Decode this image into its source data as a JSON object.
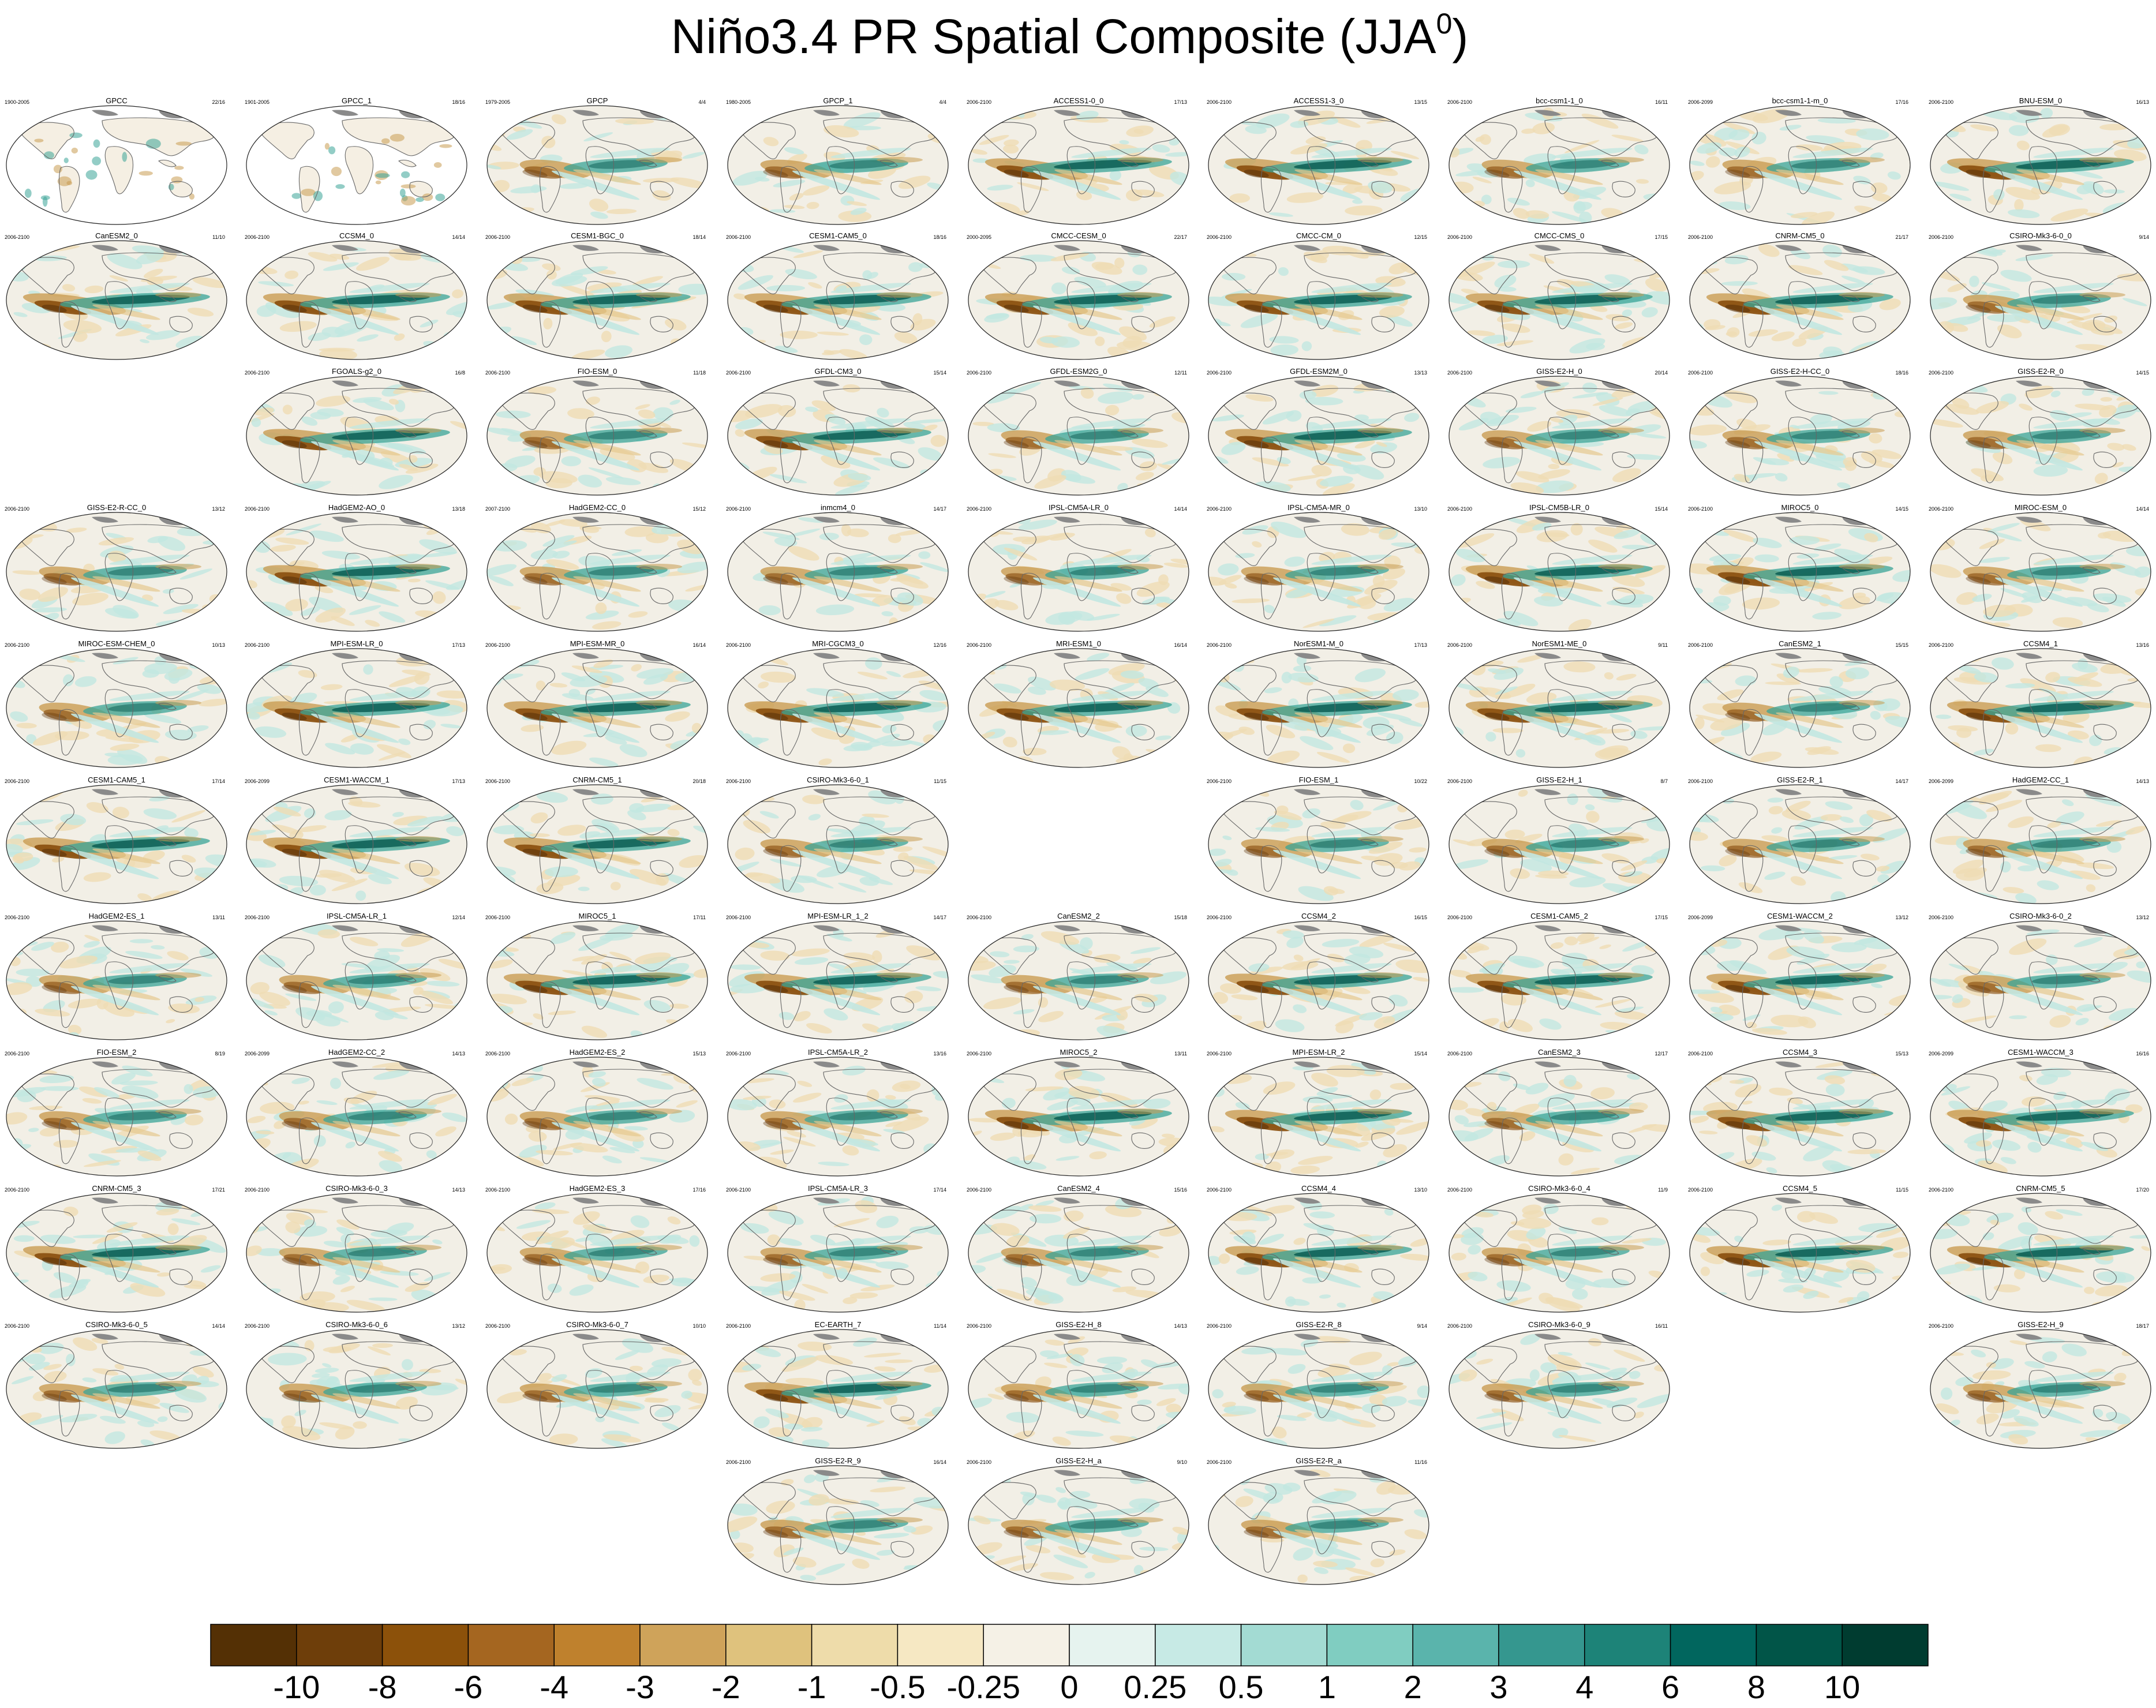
{
  "title": {
    "main": "Niño3.4 PR Spatial Composite (JJA",
    "sup": "0",
    "close": ")"
  },
  "colors": {
    "brown_dark": "#5b3209",
    "brown": "#8c5212",
    "tan": "#c99c52",
    "cream": "#f5efe3",
    "teal_light": "#c2e7e1",
    "teal": "#3aa497",
    "teal_dark": "#0a5d52",
    "ocean": "#f2efe6",
    "land_outline": "#666666",
    "land_gray": "#8a8a8a"
  },
  "panels": [
    {
      "name": "GPCC",
      "period": "1900-2005",
      "count": "22/16",
      "row": 0,
      "col": 0,
      "style": "land"
    },
    {
      "name": "GPCC_1",
      "period": "1901-2005",
      "count": "18/16",
      "row": 0,
      "col": 1,
      "style": "land"
    },
    {
      "name": "GPCP",
      "period": "1979-2005",
      "count": "4/4",
      "row": 0,
      "col": 2,
      "style": "moderate"
    },
    {
      "name": "GPCP_1",
      "period": "1980-2005",
      "count": "4/4",
      "row": 0,
      "col": 3,
      "style": "moderate"
    },
    {
      "name": "ACCESS1-0_0",
      "period": "2006-2100",
      "count": "17/13",
      "row": 0,
      "col": 4,
      "style": "strong"
    },
    {
      "name": "ACCESS1-3_0",
      "period": "2006-2100",
      "count": "13/15",
      "row": 0,
      "col": 5,
      "style": "strong"
    },
    {
      "name": "bcc-csm1-1_0",
      "period": "2006-2100",
      "count": "16/11",
      "row": 0,
      "col": 6,
      "style": "moderate"
    },
    {
      "name": "bcc-csm1-1-m_0",
      "period": "2006-2099",
      "count": "17/16",
      "row": 0,
      "col": 7,
      "style": "moderate"
    },
    {
      "name": "BNU-ESM_0",
      "period": "2006-2100",
      "count": "16/13",
      "row": 0,
      "col": 8,
      "style": "strong"
    },
    {
      "name": "CanESM2_0",
      "period": "2006-2100",
      "count": "11/10",
      "row": 1,
      "col": 0,
      "style": "strong"
    },
    {
      "name": "CCSM4_0",
      "period": "2006-2100",
      "count": "14/14",
      "row": 1,
      "col": 1,
      "style": "strong"
    },
    {
      "name": "CESM1-BGC_0",
      "period": "2006-2100",
      "count": "18/14",
      "row": 1,
      "col": 2,
      "style": "strong"
    },
    {
      "name": "CESM1-CAM5_0",
      "period": "2006-2100",
      "count": "18/16",
      "row": 1,
      "col": 3,
      "style": "strong"
    },
    {
      "name": "CMCC-CESM_0",
      "period": "2000-2095",
      "count": "22/17",
      "row": 1,
      "col": 4,
      "style": "strong"
    },
    {
      "name": "CMCC-CM_0",
      "period": "2006-2100",
      "count": "12/15",
      "row": 1,
      "col": 5,
      "style": "strong"
    },
    {
      "name": "CMCC-CMS_0",
      "period": "2006-2100",
      "count": "17/15",
      "row": 1,
      "col": 6,
      "style": "strong"
    },
    {
      "name": "CNRM-CM5_0",
      "period": "2006-2100",
      "count": "21/17",
      "row": 1,
      "col": 7,
      "style": "strong"
    },
    {
      "name": "CSIRO-Mk3-6-0_0",
      "period": "2006-2100",
      "count": "9/14",
      "row": 1,
      "col": 8,
      "style": "moderate"
    },
    {
      "name": "FGOALS-g2_0",
      "period": "2006-2100",
      "count": "16/8",
      "row": 2,
      "col": 1,
      "style": "strong"
    },
    {
      "name": "FIO-ESM_0",
      "period": "2006-2100",
      "count": "11/18",
      "row": 2,
      "col": 2,
      "style": "moderate"
    },
    {
      "name": "GFDL-CM3_0",
      "period": "2006-2100",
      "count": "15/14",
      "row": 2,
      "col": 3,
      "style": "strong"
    },
    {
      "name": "GFDL-ESM2G_0",
      "period": "2006-2100",
      "count": "12/11",
      "row": 2,
      "col": 4,
      "style": "moderate"
    },
    {
      "name": "GFDL-ESM2M_0",
      "period": "2006-2100",
      "count": "13/13",
      "row": 2,
      "col": 5,
      "style": "strong"
    },
    {
      "name": "GISS-E2-H_0",
      "period": "2006-2100",
      "count": "20/14",
      "row": 2,
      "col": 6,
      "style": "moderate"
    },
    {
      "name": "GISS-E2-H-CC_0",
      "period": "2006-2100",
      "count": "18/16",
      "row": 2,
      "col": 7,
      "style": "moderate"
    },
    {
      "name": "GISS-E2-R_0",
      "period": "2006-2100",
      "count": "14/15",
      "row": 2,
      "col": 8,
      "style": "moderate"
    },
    {
      "name": "GISS-E2-R-CC_0",
      "period": "2006-2100",
      "count": "13/12",
      "row": 3,
      "col": 0,
      "style": "moderate"
    },
    {
      "name": "HadGEM2-AO_0",
      "period": "2006-2100",
      "count": "13/18",
      "row": 3,
      "col": 1,
      "style": "strong"
    },
    {
      "name": "HadGEM2-CC_0",
      "period": "2007-2100",
      "count": "15/12",
      "row": 3,
      "col": 2,
      "style": "moderate"
    },
    {
      "name": "inmcm4_0",
      "period": "2006-2100",
      "count": "14/17",
      "row": 3,
      "col": 3,
      "style": "moderate"
    },
    {
      "name": "IPSL-CM5A-LR_0",
      "period": "2006-2100",
      "count": "14/14",
      "row": 3,
      "col": 4,
      "style": "moderate"
    },
    {
      "name": "IPSL-CM5A-MR_0",
      "period": "2006-2100",
      "count": "13/10",
      "row": 3,
      "col": 5,
      "style": "moderate"
    },
    {
      "name": "IPSL-CM5B-LR_0",
      "period": "2006-2100",
      "count": "15/14",
      "row": 3,
      "col": 6,
      "style": "strong"
    },
    {
      "name": "MIROC5_0",
      "period": "2006-2100",
      "count": "14/15",
      "row": 3,
      "col": 7,
      "style": "strong"
    },
    {
      "name": "MIROC-ESM_0",
      "period": "2006-2100",
      "count": "14/14",
      "row": 3,
      "col": 8,
      "style": "moderate"
    },
    {
      "name": "MIROC-ESM-CHEM_0",
      "period": "2006-2100",
      "count": "10/13",
      "row": 4,
      "col": 0,
      "style": "moderate"
    },
    {
      "name": "MPI-ESM-LR_0",
      "period": "2006-2100",
      "count": "17/13",
      "row": 4,
      "col": 1,
      "style": "strong"
    },
    {
      "name": "MPI-ESM-MR_0",
      "period": "2006-2100",
      "count": "16/14",
      "row": 4,
      "col": 2,
      "style": "strong"
    },
    {
      "name": "MRI-CGCM3_0",
      "period": "2006-2100",
      "count": "12/16",
      "row": 4,
      "col": 3,
      "style": "strong"
    },
    {
      "name": "MRI-ESM1_0",
      "period": "2006-2100",
      "count": "16/14",
      "row": 4,
      "col": 4,
      "style": "strong"
    },
    {
      "name": "NorESM1-M_0",
      "period": "2006-2100",
      "count": "17/13",
      "row": 4,
      "col": 5,
      "style": "strong"
    },
    {
      "name": "NorESM1-ME_0",
      "period": "2006-2100",
      "count": "9/11",
      "row": 4,
      "col": 6,
      "style": "strong"
    },
    {
      "name": "CanESM2_1",
      "period": "2006-2100",
      "count": "15/15",
      "row": 4,
      "col": 7,
      "style": "moderate"
    },
    {
      "name": "CCSM4_1",
      "period": "2006-2100",
      "count": "13/16",
      "row": 4,
      "col": 8,
      "style": "strong"
    },
    {
      "name": "CESM1-CAM5_1",
      "period": "2006-2100",
      "count": "17/14",
      "row": 5,
      "col": 0,
      "style": "strong"
    },
    {
      "name": "CESM1-WACCM_1",
      "period": "2006-2099",
      "count": "17/13",
      "row": 5,
      "col": 1,
      "style": "strong"
    },
    {
      "name": "CNRM-CM5_1",
      "period": "2006-2100",
      "count": "20/18",
      "row": 5,
      "col": 2,
      "style": "strong"
    },
    {
      "name": "CSIRO-Mk3-6-0_1",
      "period": "2006-2100",
      "count": "11/15",
      "row": 5,
      "col": 3,
      "style": "moderate"
    },
    {
      "name": "FIO-ESM_1",
      "period": "2006-2100",
      "count": "10/22",
      "row": 5,
      "col": 5,
      "style": "moderate"
    },
    {
      "name": "GISS-E2-H_1",
      "period": "2006-2100",
      "count": "8/7",
      "row": 5,
      "col": 6,
      "style": "moderate"
    },
    {
      "name": "GISS-E2-R_1",
      "period": "2006-2100",
      "count": "14/17",
      "row": 5,
      "col": 7,
      "style": "moderate"
    },
    {
      "name": "HadGEM2-CC_1",
      "period": "2006-2099",
      "count": "14/13",
      "row": 5,
      "col": 8,
      "style": "moderate"
    },
    {
      "name": "HadGEM2-ES_1",
      "period": "2006-2100",
      "count": "13/11",
      "row": 6,
      "col": 0,
      "style": "moderate"
    },
    {
      "name": "IPSL-CM5A-LR_1",
      "period": "2006-2100",
      "count": "12/14",
      "row": 6,
      "col": 1,
      "style": "moderate"
    },
    {
      "name": "MIROC5_1",
      "period": "2006-2100",
      "count": "17/11",
      "row": 6,
      "col": 2,
      "style": "strong"
    },
    {
      "name": "MPI-ESM-LR_1_2",
      "period": "2006-2100",
      "count": "14/17",
      "row": 6,
      "col": 3,
      "style": "strong"
    },
    {
      "name": "CanESM2_2",
      "period": "2006-2100",
      "count": "15/18",
      "row": 6,
      "col": 4,
      "style": "moderate"
    },
    {
      "name": "CCSM4_2",
      "period": "2006-2100",
      "count": "16/15",
      "row": 6,
      "col": 5,
      "style": "strong"
    },
    {
      "name": "CESM1-CAM5_2",
      "period": "2006-2100",
      "count": "17/15",
      "row": 6,
      "col": 6,
      "style": "strong"
    },
    {
      "name": "CESM1-WACCM_2",
      "period": "2006-2099",
      "count": "13/12",
      "row": 6,
      "col": 7,
      "style": "strong"
    },
    {
      "name": "CSIRO-Mk3-6-0_2",
      "period": "2006-2100",
      "count": "13/12",
      "row": 6,
      "col": 8,
      "style": "moderate"
    },
    {
      "name": "FIO-ESM_2",
      "period": "2006-2100",
      "count": "8/19",
      "row": 7,
      "col": 0,
      "style": "moderate"
    },
    {
      "name": "HadGEM2-CC_2",
      "period": "2006-2099",
      "count": "14/13",
      "row": 7,
      "col": 1,
      "style": "moderate"
    },
    {
      "name": "HadGEM2-ES_2",
      "period": "2006-2100",
      "count": "15/13",
      "row": 7,
      "col": 2,
      "style": "moderate"
    },
    {
      "name": "IPSL-CM5A-LR_2",
      "period": "2006-2100",
      "count": "13/16",
      "row": 7,
      "col": 3,
      "style": "moderate"
    },
    {
      "name": "MIROC5_2",
      "period": "2006-2100",
      "count": "13/11",
      "row": 7,
      "col": 4,
      "style": "strong"
    },
    {
      "name": "MPI-ESM-LR_2",
      "period": "2006-2100",
      "count": "15/14",
      "row": 7,
      "col": 5,
      "style": "strong"
    },
    {
      "name": "CanESM2_3",
      "period": "2006-2100",
      "count": "12/17",
      "row": 7,
      "col": 6,
      "style": "moderate"
    },
    {
      "name": "CCSM4_3",
      "period": "2006-2100",
      "count": "15/13",
      "row": 7,
      "col": 7,
      "style": "strong"
    },
    {
      "name": "CESM1-WACCM_3",
      "period": "2006-2099",
      "count": "16/16",
      "row": 7,
      "col": 8,
      "style": "strong"
    },
    {
      "name": "CNRM-CM5_3",
      "period": "2006-2100",
      "count": "17/21",
      "row": 8,
      "col": 0,
      "style": "strong"
    },
    {
      "name": "CSIRO-Mk3-6-0_3",
      "period": "2006-2100",
      "count": "14/13",
      "row": 8,
      "col": 1,
      "style": "moderate"
    },
    {
      "name": "HadGEM2-ES_3",
      "period": "2006-2100",
      "count": "17/16",
      "row": 8,
      "col": 2,
      "style": "moderate"
    },
    {
      "name": "IPSL-CM5A-LR_3",
      "period": "2006-2100",
      "count": "17/14",
      "row": 8,
      "col": 3,
      "style": "moderate"
    },
    {
      "name": "CanESM2_4",
      "period": "2006-2100",
      "count": "15/16",
      "row": 8,
      "col": 4,
      "style": "moderate"
    },
    {
      "name": "CCSM4_4",
      "period": "2006-2100",
      "count": "13/10",
      "row": 8,
      "col": 5,
      "style": "strong"
    },
    {
      "name": "CSIRO-Mk3-6-0_4",
      "period": "2006-2100",
      "count": "11/9",
      "row": 8,
      "col": 6,
      "style": "moderate"
    },
    {
      "name": "CCSM4_5",
      "period": "2006-2100",
      "count": "11/15",
      "row": 8,
      "col": 7,
      "style": "strong"
    },
    {
      "name": "CNRM-CM5_5",
      "period": "2006-2100",
      "count": "17/20",
      "row": 8,
      "col": 8,
      "style": "strong"
    },
    {
      "name": "CSIRO-Mk3-6-0_5",
      "period": "2006-2100",
      "count": "14/14",
      "row": 9,
      "col": 0,
      "style": "moderate"
    },
    {
      "name": "CSIRO-Mk3-6-0_6",
      "period": "2006-2100",
      "count": "13/12",
      "row": 9,
      "col": 1,
      "style": "moderate"
    },
    {
      "name": "CSIRO-Mk3-6-0_7",
      "period": "2006-2100",
      "count": "10/10",
      "row": 9,
      "col": 2,
      "style": "moderate"
    },
    {
      "name": "EC-EARTH_7",
      "period": "2006-2100",
      "count": "11/14",
      "row": 9,
      "col": 3,
      "style": "strong"
    },
    {
      "name": "GISS-E2-H_8",
      "period": "2006-2100",
      "count": "14/13",
      "row": 9,
      "col": 4,
      "style": "moderate"
    },
    {
      "name": "GISS-E2-R_8",
      "period": "2006-2100",
      "count": "9/14",
      "row": 9,
      "col": 5,
      "style": "moderate"
    },
    {
      "name": "CSIRO-Mk3-6-0_9",
      "period": "2006-2100",
      "count": "16/11",
      "row": 9,
      "col": 6,
      "style": "moderate"
    },
    {
      "name": "GISS-E2-H_9",
      "period": "2006-2100",
      "count": "18/17",
      "row": 9,
      "col": 8,
      "style": "moderate"
    },
    {
      "name": "GISS-E2-R_9",
      "period": "2006-2100",
      "count": "16/14",
      "row": 10,
      "col": 3,
      "style": "moderate"
    },
    {
      "name": "GISS-E2-H_a",
      "period": "2006-2100",
      "count": "9/10",
      "row": 10,
      "col": 4,
      "style": "moderate"
    },
    {
      "name": "GISS-E2-R_a",
      "period": "2006-2100",
      "count": "11/16",
      "row": 10,
      "col": 5,
      "style": "moderate"
    }
  ],
  "colorbar": {
    "boxes": [
      "#543005",
      "#6e3e0a",
      "#8c510a",
      "#a56620",
      "#bf812d",
      "#cfa35a",
      "#dfc27d",
      "#eedcaa",
      "#f6e8c3",
      "#f5f1e6",
      "#e6f3ef",
      "#c7eae5",
      "#a3dbd3",
      "#80cdc1",
      "#5ab4ac",
      "#35978f",
      "#1d8378",
      "#01665e",
      "#015548",
      "#003c30"
    ],
    "labels": [
      "-10",
      "-8",
      "-6",
      "-4",
      "-3",
      "-2",
      "-1",
      "-0.5",
      "-0.25",
      "0",
      "0.25",
      "0.5",
      "1",
      "2",
      "3",
      "4",
      "6",
      "8",
      "10"
    ]
  }
}
